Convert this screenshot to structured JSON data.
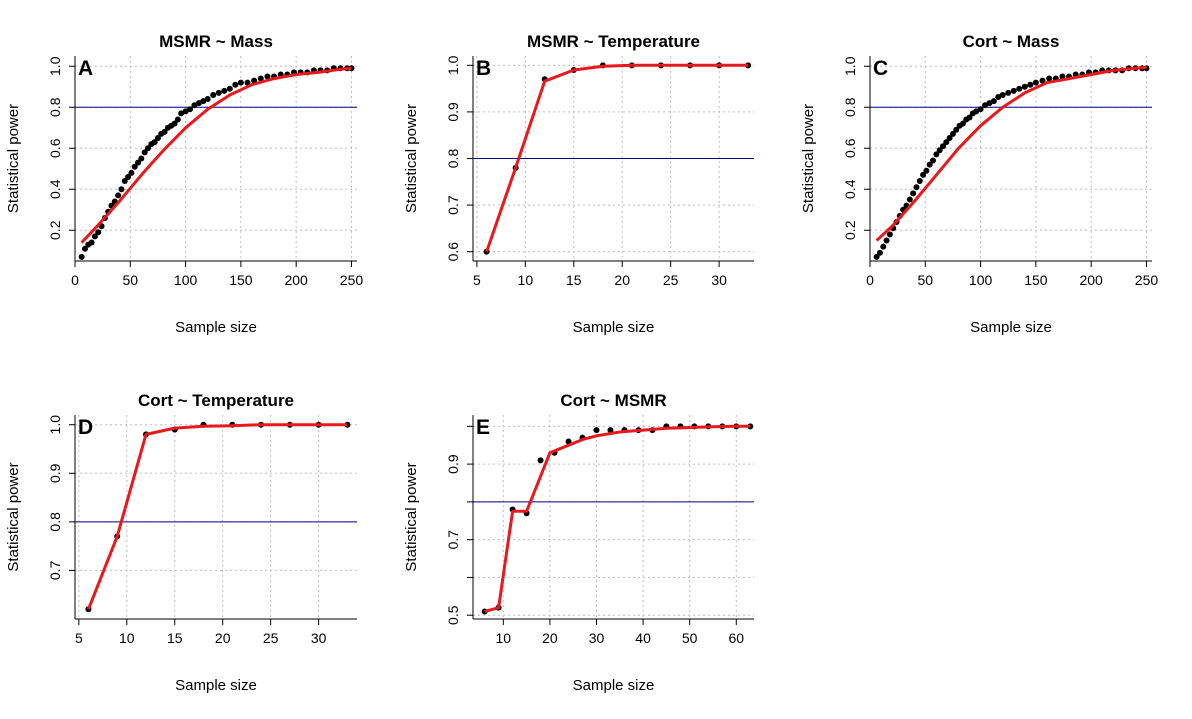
{
  "figure": {
    "hline_color": "#00008b",
    "fit_color": "#e8191c",
    "point_color": "#000000",
    "grid_color": "#bdbdbd"
  },
  "chart_data": [
    {
      "type": "scatter",
      "panel": "A",
      "title": "MSMR ~ Mass",
      "xlabel": "Sample size",
      "ylabel": "Statistical power",
      "xlim": [
        0,
        255
      ],
      "ylim": [
        0.05,
        1.05
      ],
      "xticks": [
        0,
        50,
        100,
        150,
        200,
        250
      ],
      "yticks": [
        0.2,
        0.4,
        0.6,
        0.8,
        1.0
      ],
      "ytick_labels": [
        "0.2",
        "0.4",
        "0.6",
        "0.8",
        "1.0"
      ],
      "hline": 0.8,
      "grid": true,
      "points": {
        "x": [
          6,
          9,
          12,
          15,
          18,
          21,
          24,
          27,
          30,
          33,
          36,
          39,
          42,
          45,
          48,
          51,
          54,
          57,
          60,
          63,
          66,
          69,
          72,
          75,
          78,
          81,
          84,
          87,
          90,
          93,
          96,
          100,
          104,
          108,
          112,
          116,
          120,
          125,
          130,
          135,
          140,
          145,
          150,
          156,
          162,
          168,
          174,
          180,
          186,
          192,
          198,
          204,
          210,
          216,
          222,
          228,
          234,
          240,
          246,
          250
        ],
        "y": [
          0.07,
          0.11,
          0.13,
          0.14,
          0.17,
          0.19,
          0.22,
          0.26,
          0.29,
          0.32,
          0.34,
          0.37,
          0.4,
          0.44,
          0.46,
          0.48,
          0.51,
          0.53,
          0.55,
          0.58,
          0.6,
          0.62,
          0.63,
          0.65,
          0.67,
          0.68,
          0.7,
          0.71,
          0.72,
          0.74,
          0.77,
          0.78,
          0.79,
          0.81,
          0.82,
          0.83,
          0.84,
          0.86,
          0.87,
          0.88,
          0.89,
          0.91,
          0.92,
          0.92,
          0.93,
          0.94,
          0.95,
          0.95,
          0.96,
          0.96,
          0.97,
          0.97,
          0.97,
          0.98,
          0.98,
          0.98,
          0.99,
          0.99,
          0.99,
          0.99
        ]
      },
      "fit": {
        "x": [
          6,
          20,
          40,
          60,
          80,
          100,
          120,
          140,
          160,
          180,
          200,
          220,
          240,
          250
        ],
        "y": [
          0.14,
          0.22,
          0.34,
          0.47,
          0.59,
          0.7,
          0.79,
          0.86,
          0.91,
          0.94,
          0.96,
          0.97,
          0.985,
          0.99
        ]
      }
    },
    {
      "type": "line",
      "panel": "B",
      "title": "MSMR ~ Temperature",
      "xlabel": "Sample size",
      "ylabel": "Statistical power",
      "xlim": [
        4.6,
        33.6
      ],
      "ylim": [
        0.58,
        1.02
      ],
      "xticks": [
        5,
        10,
        15,
        20,
        25,
        30
      ],
      "yticks": [
        0.6,
        0.7,
        0.8,
        0.9,
        1.0
      ],
      "ytick_labels": [
        "0.6",
        "0.7",
        "0.8",
        "0.9",
        "1.0"
      ],
      "hline": 0.8,
      "grid": true,
      "points": {
        "x": [
          6,
          9,
          12,
          15,
          18,
          21,
          24,
          27,
          30,
          33
        ],
        "y": [
          0.6,
          0.78,
          0.97,
          0.99,
          1.0,
          1.0,
          1.0,
          1.0,
          1.0,
          1.0
        ]
      },
      "fit": {
        "x": [
          6,
          9,
          12,
          15,
          18,
          21,
          24,
          27,
          30,
          33
        ],
        "y": [
          0.6,
          0.78,
          0.966,
          0.99,
          0.998,
          1.0,
          1.0,
          1.0,
          1.0,
          1.0
        ]
      }
    },
    {
      "type": "scatter",
      "panel": "C",
      "title": "Cort ~ Mass",
      "xlabel": "Sample size",
      "ylabel": "Statistical power",
      "xlim": [
        0,
        255
      ],
      "ylim": [
        0.05,
        1.05
      ],
      "xticks": [
        0,
        50,
        100,
        150,
        200,
        250
      ],
      "yticks": [
        0.2,
        0.4,
        0.6,
        0.8,
        1.0
      ],
      "ytick_labels": [
        "0.2",
        "0.4",
        "0.6",
        "0.8",
        "1.0"
      ],
      "hline": 0.8,
      "grid": true,
      "points": {
        "x": [
          6,
          9,
          12,
          15,
          18,
          21,
          24,
          27,
          30,
          33,
          36,
          39,
          42,
          45,
          48,
          51,
          54,
          57,
          60,
          63,
          66,
          69,
          72,
          75,
          78,
          81,
          84,
          87,
          90,
          93,
          96,
          100,
          104,
          108,
          112,
          116,
          120,
          125,
          130,
          135,
          140,
          145,
          150,
          156,
          162,
          168,
          174,
          180,
          186,
          192,
          198,
          204,
          210,
          216,
          222,
          228,
          234,
          240,
          246,
          250
        ],
        "y": [
          0.07,
          0.09,
          0.12,
          0.15,
          0.18,
          0.21,
          0.24,
          0.27,
          0.3,
          0.32,
          0.35,
          0.38,
          0.41,
          0.44,
          0.47,
          0.49,
          0.52,
          0.54,
          0.57,
          0.59,
          0.61,
          0.63,
          0.65,
          0.67,
          0.69,
          0.71,
          0.72,
          0.74,
          0.75,
          0.77,
          0.78,
          0.79,
          0.81,
          0.82,
          0.83,
          0.85,
          0.86,
          0.87,
          0.88,
          0.89,
          0.9,
          0.91,
          0.92,
          0.93,
          0.94,
          0.94,
          0.95,
          0.95,
          0.96,
          0.96,
          0.97,
          0.97,
          0.98,
          0.98,
          0.98,
          0.98,
          0.99,
          0.99,
          0.99,
          0.99
        ]
      },
      "fit": {
        "x": [
          6,
          20,
          40,
          60,
          80,
          100,
          120,
          140,
          160,
          180,
          200,
          220,
          240,
          250
        ],
        "y": [
          0.15,
          0.22,
          0.34,
          0.47,
          0.6,
          0.71,
          0.8,
          0.87,
          0.92,
          0.94,
          0.96,
          0.98,
          0.99,
          0.995
        ]
      }
    },
    {
      "type": "line",
      "panel": "D",
      "title": "Cort ~ Temperature",
      "xlabel": "Sample size",
      "ylabel": "Statistical power",
      "xlim": [
        4.6,
        34.0
      ],
      "ylim": [
        0.6,
        1.02
      ],
      "xticks": [
        5,
        10,
        15,
        20,
        25,
        30
      ],
      "yticks": [
        0.7,
        0.8,
        0.9,
        1.0
      ],
      "ytick_labels": [
        "0.7",
        "0.8",
        "0.9",
        "1.0"
      ],
      "hline": 0.8,
      "grid": true,
      "points": {
        "x": [
          6,
          9,
          12,
          15,
          18,
          21,
          24,
          27,
          30,
          33
        ],
        "y": [
          0.62,
          0.77,
          0.98,
          0.99,
          1.0,
          1.0,
          1.0,
          1.0,
          1.0,
          1.0
        ]
      },
      "fit": {
        "x": [
          6,
          9,
          12,
          15,
          18,
          21,
          24,
          27,
          30,
          33
        ],
        "y": [
          0.62,
          0.77,
          0.98,
          0.993,
          0.997,
          0.998,
          1.0,
          1.0,
          1.0,
          1.0
        ]
      }
    },
    {
      "type": "line",
      "panel": "E",
      "title": "Cort ~ MSMR",
      "xlabel": "Sample size",
      "ylabel": "Statistical power",
      "xlim": [
        3.5,
        63.8
      ],
      "ylim": [
        0.49,
        1.03
      ],
      "xticks": [
        10,
        20,
        30,
        40,
        50,
        60
      ],
      "yticks": [
        0.5,
        0.6,
        0.7,
        0.8,
        0.9,
        1.0
      ],
      "ytick_labels": [
        "0.5",
        "",
        "0.7",
        "",
        "0.9",
        ""
      ],
      "hline": 0.8,
      "grid": true,
      "points": {
        "x": [
          6,
          9,
          12,
          15,
          18,
          21,
          24,
          27,
          30,
          33,
          36,
          39,
          42,
          45,
          48,
          51,
          54,
          57,
          60,
          63
        ],
        "y": [
          0.51,
          0.52,
          0.78,
          0.77,
          0.91,
          0.93,
          0.96,
          0.97,
          0.99,
          0.99,
          0.99,
          0.99,
          0.99,
          1.0,
          1.0,
          1.0,
          1.0,
          1.0,
          1.0,
          1.0
        ]
      },
      "fit": {
        "x": [
          6,
          9,
          12,
          15,
          20,
          24,
          27,
          30,
          35,
          40,
          45,
          50,
          55,
          60,
          63
        ],
        "y": [
          0.51,
          0.52,
          0.775,
          0.775,
          0.93,
          0.95,
          0.965,
          0.975,
          0.985,
          0.99,
          0.995,
          0.997,
          0.999,
          1.0,
          1.0
        ]
      }
    }
  ]
}
